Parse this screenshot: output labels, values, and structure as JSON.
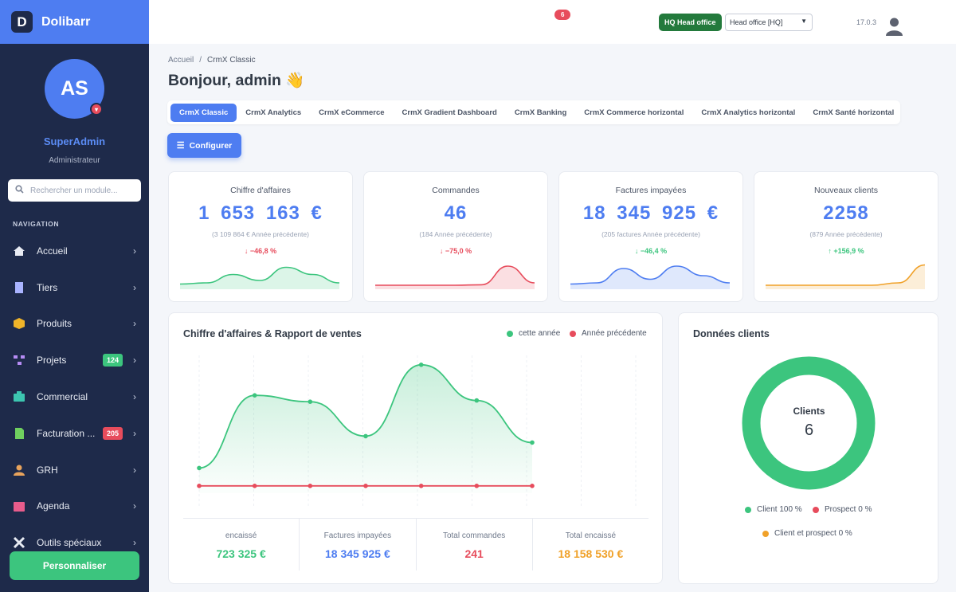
{
  "brand": {
    "logo_letter": "D",
    "name": "Dolibarr"
  },
  "profile": {
    "initials": "AS",
    "name": "SuperAdmin",
    "role": "Administrateur"
  },
  "sidebar_search": {
    "placeholder": "Rechercher un module..."
  },
  "navigation": {
    "title": "NAVIGATION",
    "items": [
      {
        "label": "Accueil",
        "icon": "home-icon",
        "color": "#e8ebf3"
      },
      {
        "label": "Tiers",
        "icon": "building-icon",
        "color": "#a9b3ff"
      },
      {
        "label": "Produits",
        "icon": "box-icon",
        "color": "#f0b429"
      },
      {
        "label": "Projets",
        "icon": "sitemap-icon",
        "color": "#b68cf5",
        "badge": "124",
        "badge_color": "#3cc57e"
      },
      {
        "label": "Commercial",
        "icon": "briefcase-icon",
        "color": "#3cc5b0"
      },
      {
        "label": "Facturation ...",
        "icon": "invoice-icon",
        "color": "#6fcf5f",
        "badge": "205",
        "badge_color": "#e74c5c"
      },
      {
        "label": "GRH",
        "icon": "user-icon",
        "color": "#e8a35c"
      },
      {
        "label": "Agenda",
        "icon": "calendar-icon",
        "color": "#e85c8c"
      },
      {
        "label": "Outils spéciaux",
        "icon": "tools-icon",
        "color": "#e8ebf3"
      }
    ]
  },
  "personalize_label": "Personnaliser",
  "topbar": {
    "notification_count": "6",
    "entity_badge": "HQ Head office",
    "entity_select": "Head office [HQ]",
    "version": "17.0.3"
  },
  "breadcrumb": {
    "home": "Accueil",
    "current": "CrmX Classic"
  },
  "greeting": "Bonjour, admin 👋",
  "tabs": [
    "CrmX Classic",
    "CrmX Analytics",
    "CrmX eCommerce",
    "CrmX Gradient Dashboard",
    "CrmX Banking",
    "CrmX Commerce horizontal",
    "CrmX Analytics horizontal",
    "CrmX Santé horizontal"
  ],
  "configure_label": "Configurer",
  "kpis": [
    {
      "title": "Chiffre d'affaires",
      "value": "1 653 163 €",
      "prev": "(3 109 864 € Année précédente)",
      "change": "↓ −46,8 %",
      "change_color": "#e74c5c",
      "spark_color": "#3cc57e",
      "spark": [
        0.15,
        0.2,
        0.55,
        0.3,
        0.85,
        0.55,
        0.2
      ]
    },
    {
      "title": "Commandes",
      "value": "46",
      "prev": "(184 Année précédente)",
      "change": "↓ −75,0 %",
      "change_color": "#e74c5c",
      "spark_color": "#e74c5c",
      "spark": [
        0.1,
        0.1,
        0.1,
        0.1,
        0.12,
        0.9,
        0.2
      ]
    },
    {
      "title": "Factures impayées",
      "value": "18 345 925 €",
      "prev": "(205 factures Année précédente)",
      "change": "↓ −46,4 %",
      "change_color": "#3cc57e",
      "spark_color": "#4e7df1",
      "spark": [
        0.15,
        0.2,
        0.8,
        0.35,
        0.9,
        0.5,
        0.2
      ]
    },
    {
      "title": "Nouveaux clients",
      "value": "2258",
      "prev": "(879 Année précédente)",
      "change": "↑ +156,9 %",
      "change_color": "#3cc57e",
      "spark_color": "#f0a129",
      "spark": [
        0.1,
        0.1,
        0.1,
        0.1,
        0.1,
        0.2,
        0.95
      ]
    }
  ],
  "sales_card": {
    "title": "Chiffre d'affaires & Rapport de ventes",
    "legend": [
      {
        "label": "cette année",
        "color": "#3cc57e"
      },
      {
        "label": "Année précédente",
        "color": "#e74c5c"
      }
    ],
    "summary": [
      {
        "label": "encaissé",
        "value": "723 325 €",
        "color": "#3cc57e"
      },
      {
        "label": "Factures impayées",
        "value": "18 345 925 €",
        "color": "#4e7df1"
      },
      {
        "label": "Total commandes",
        "value": "241",
        "color": "#e74c5c"
      },
      {
        "label": "Total encaissé",
        "value": "18 158 530 €",
        "color": "#f0a129"
      }
    ]
  },
  "chart_data": {
    "type": "area",
    "title": "Chiffre d'affaires & Rapport de ventes",
    "ylim": [
      0,
      1
    ],
    "series": [
      {
        "name": "cette année",
        "color": "#3cc57e",
        "values": [
          0.16,
          0.73,
          0.68,
          0.41,
          0.97,
          0.69,
          0.36
        ]
      },
      {
        "name": "Année précédente",
        "color": "#e74c5c",
        "values": [
          0.02,
          0.02,
          0.02,
          0.02,
          0.02,
          0.02,
          0.02
        ]
      }
    ]
  },
  "clients_card": {
    "title": "Données clients",
    "center_label": "Clients",
    "center_value": "6",
    "legend": [
      {
        "label": "Client 100 %",
        "color": "#3cc57e"
      },
      {
        "label": "Prospect 0 %",
        "color": "#e74c5c"
      },
      {
        "label": "Client et prospect 0 %",
        "color": "#f0a129"
      }
    ],
    "donut": [
      {
        "name": "Client",
        "value": 100,
        "color": "#3cc57e"
      },
      {
        "name": "Prospect",
        "value": 0,
        "color": "#e74c5c"
      },
      {
        "name": "Client et prospect",
        "value": 0,
        "color": "#f0a129"
      }
    ]
  }
}
